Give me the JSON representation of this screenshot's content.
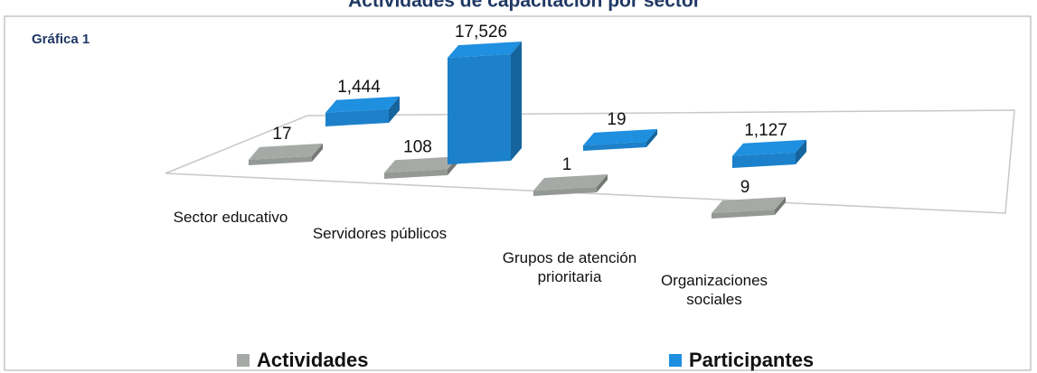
{
  "chart_data": {
    "type": "bar3d",
    "title": "Actividades de capacitación por sector",
    "label": "Gráfica 1",
    "categories": [
      "Sector educativo",
      "Servidores públicos",
      "Grupos de atención prioritaria",
      "Organizaciones sociales"
    ],
    "series": [
      {
        "name": "Actividades",
        "color": "#a6aaa6",
        "values": [
          17,
          108,
          1,
          9
        ],
        "value_labels": [
          "17",
          "108",
          "1",
          "9"
        ]
      },
      {
        "name": "Participantes",
        "color": "#1f8fe0",
        "values": [
          1444,
          17526,
          19,
          1127
        ],
        "value_labels": [
          "1,444",
          "17,526",
          "19",
          "1,127"
        ]
      }
    ],
    "legend": "bottom"
  }
}
